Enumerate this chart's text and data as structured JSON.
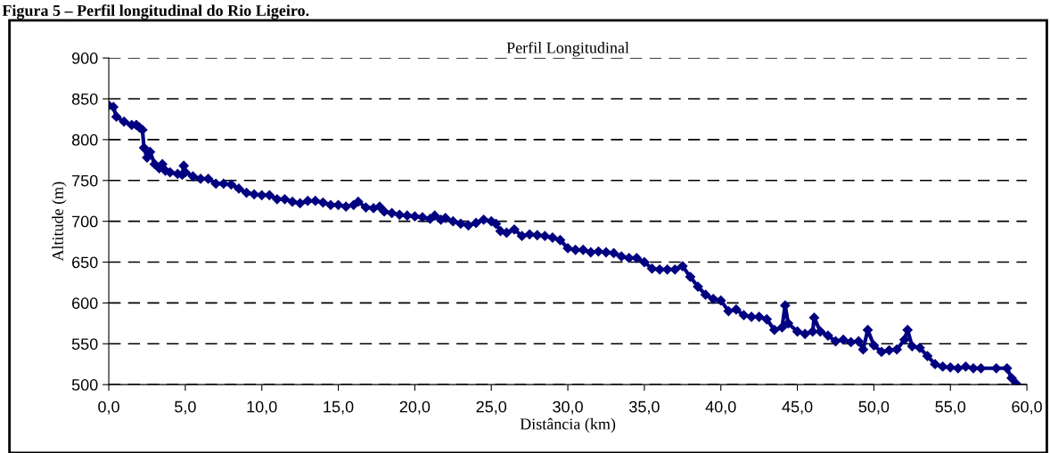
{
  "chart_data": {
    "type": "line",
    "title": "Perfil Longitudinal",
    "xlabel": "Distância (km)",
    "ylabel": "Altitude (m)",
    "annotations": [
      "Figura 5 – Perfil longitudinal do Rio Ligeiro."
    ],
    "marker": "diamond",
    "line_style": "solid",
    "grid": "y",
    "legend": false,
    "xlim": [
      0,
      60
    ],
    "xticks": [
      {
        "value": 0,
        "label": "0,0"
      },
      {
        "value": 5,
        "label": "5,0"
      },
      {
        "value": 10,
        "label": "10,0"
      },
      {
        "value": 15,
        "label": "15,0"
      },
      {
        "value": 20,
        "label": "20,0"
      },
      {
        "value": 25,
        "label": "25,0"
      },
      {
        "value": 30,
        "label": "30,0"
      },
      {
        "value": 35,
        "label": "35,0"
      },
      {
        "value": 40,
        "label": "40,0"
      },
      {
        "value": 45,
        "label": "45,0"
      },
      {
        "value": 50,
        "label": "50,0"
      },
      {
        "value": 55,
        "label": "55,0"
      },
      {
        "value": 60,
        "label": "60,0"
      }
    ],
    "ylim": [
      500,
      900
    ],
    "yticks": [
      500,
      550,
      600,
      650,
      700,
      750,
      800,
      850,
      900
    ],
    "series": [
      {
        "color": "#000080",
        "x": [
          0.0,
          0.3,
          0.5,
          1.0,
          1.5,
          1.8,
          2.0,
          2.2,
          2.3,
          2.5,
          2.7,
          3.0,
          3.3,
          3.5,
          3.7,
          4.0,
          4.5,
          4.8,
          4.9,
          5.0,
          5.5,
          6.0,
          6.5,
          7.0,
          7.5,
          8.0,
          8.5,
          9.0,
          9.5,
          10.0,
          10.5,
          11.0,
          11.5,
          12.0,
          12.5,
          13.0,
          13.5,
          14.0,
          14.5,
          15.0,
          15.5,
          16.0,
          16.3,
          16.8,
          17.3,
          17.7,
          18.0,
          18.5,
          19.0,
          19.5,
          20.0,
          20.5,
          21.0,
          21.3,
          21.7,
          22.0,
          22.5,
          23.0,
          23.5,
          24.0,
          24.5,
          25.0,
          25.3,
          25.6,
          26.0,
          26.5,
          27.0,
          27.5,
          28.0,
          28.5,
          29.0,
          29.5,
          30.0,
          30.5,
          31.0,
          31.5,
          32.0,
          32.5,
          33.0,
          33.5,
          34.0,
          34.5,
          35.0,
          35.5,
          36.0,
          36.5,
          37.0,
          37.5,
          38.0,
          38.5,
          39.0,
          39.5,
          40.0,
          40.5,
          41.0,
          41.5,
          42.0,
          42.5,
          43.0,
          43.5,
          44.0,
          44.2,
          44.4,
          45.0,
          45.5,
          46.0,
          46.1,
          46.5,
          47.0,
          47.5,
          48.0,
          48.5,
          49.0,
          49.3,
          49.6,
          50.0,
          50.5,
          51.0,
          51.5,
          52.0,
          52.2,
          52.5,
          53.0,
          53.5,
          54.0,
          54.5,
          55.0,
          55.5,
          56.0,
          56.5,
          57.0,
          58.0,
          58.7,
          59.0,
          59.3
        ],
        "values": [
          842,
          840,
          828,
          822,
          818,
          818,
          815,
          812,
          790,
          778,
          785,
          770,
          765,
          770,
          762,
          760,
          758,
          757,
          768,
          760,
          755,
          752,
          752,
          746,
          746,
          745,
          740,
          735,
          733,
          732,
          732,
          727,
          727,
          724,
          722,
          725,
          725,
          723,
          720,
          720,
          718,
          720,
          724,
          717,
          716,
          718,
          712,
          710,
          708,
          707,
          706,
          705,
          703,
          707,
          702,
          704,
          700,
          697,
          695,
          698,
          702,
          700,
          697,
          688,
          686,
          690,
          682,
          684,
          683,
          682,
          680,
          677,
          667,
          665,
          665,
          662,
          663,
          662,
          661,
          657,
          655,
          655,
          650,
          642,
          641,
          641,
          641,
          645,
          632,
          620,
          610,
          605,
          603,
          590,
          592,
          585,
          583,
          583,
          580,
          567,
          570,
          597,
          575,
          565,
          562,
          565,
          582,
          565,
          560,
          553,
          555,
          552,
          553,
          543,
          567,
          548,
          540,
          542,
          543,
          555,
          567,
          547,
          545,
          535,
          525,
          522,
          521,
          520,
          522,
          520,
          520,
          520,
          520,
          508,
          501
        ]
      }
    ]
  }
}
